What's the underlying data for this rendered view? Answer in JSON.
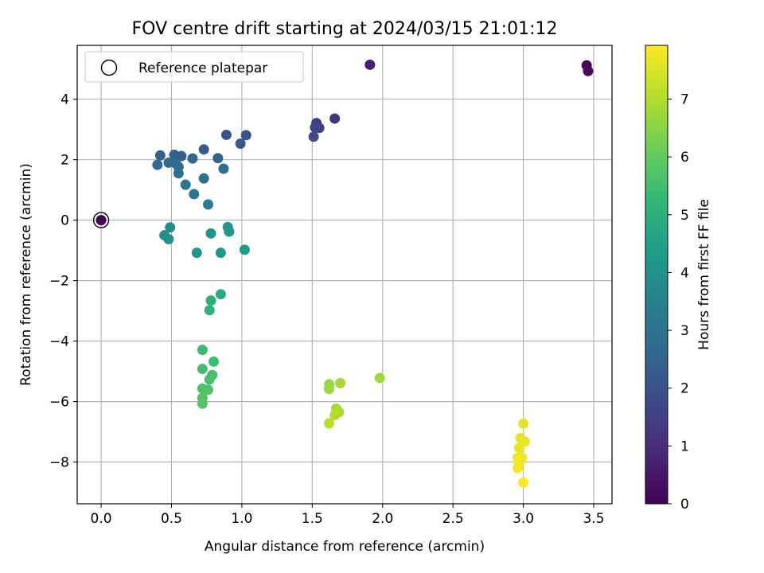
{
  "chart_data": {
    "type": "scatter",
    "title": "FOV centre drift starting at 2024/03/15 21:01:12",
    "xlabel": "Angular distance from reference (arcmin)",
    "ylabel": "Rotation from reference (arcmin)",
    "xlim": [
      -0.17,
      3.63
    ],
    "ylim": [
      -9.38,
      5.78
    ],
    "xticks": [
      0.0,
      0.5,
      1.0,
      1.5,
      2.0,
      2.5,
      3.0,
      3.5
    ],
    "xtick_labels": [
      "0.0",
      "0.5",
      "1.0",
      "1.5",
      "2.0",
      "2.5",
      "3.0",
      "3.5"
    ],
    "yticks": [
      -8,
      -6,
      -4,
      -2,
      0,
      2,
      4
    ],
    "ytick_labels": [
      "−8",
      "−6",
      "−4",
      "−2",
      "0",
      "2",
      "4"
    ],
    "grid": true,
    "legend": {
      "position": "top-left",
      "entries": [
        "Reference platepar"
      ]
    },
    "reference_point": {
      "x": 0.0,
      "y": 0.0
    },
    "colorbar": {
      "label": "Hours from first FF file",
      "colormap": "viridis",
      "range": [
        0,
        7.93
      ],
      "ticks": [
        0,
        1,
        2,
        3,
        4,
        5,
        6,
        7
      ],
      "tick_labels": [
        "0",
        "1",
        "2",
        "3",
        "4",
        "5",
        "6",
        "7"
      ]
    },
    "points": [
      {
        "x": 0.0,
        "y": 0.0,
        "h": 0.0
      },
      {
        "x": 3.45,
        "y": 5.12,
        "h": 0.1
      },
      {
        "x": 3.46,
        "y": 4.93,
        "h": 0.2
      },
      {
        "x": 1.91,
        "y": 5.14,
        "h": 0.7
      },
      {
        "x": 1.66,
        "y": 3.36,
        "h": 1.2
      },
      {
        "x": 1.53,
        "y": 3.21,
        "h": 1.4
      },
      {
        "x": 1.55,
        "y": 3.05,
        "h": 1.5
      },
      {
        "x": 1.52,
        "y": 3.07,
        "h": 1.6
      },
      {
        "x": 1.51,
        "y": 2.76,
        "h": 1.7
      },
      {
        "x": 1.03,
        "y": 2.81,
        "h": 2.0
      },
      {
        "x": 0.89,
        "y": 2.82,
        "h": 2.1
      },
      {
        "x": 0.99,
        "y": 2.53,
        "h": 2.2
      },
      {
        "x": 0.73,
        "y": 2.34,
        "h": 2.3
      },
      {
        "x": 0.42,
        "y": 2.14,
        "h": 2.4
      },
      {
        "x": 0.52,
        "y": 2.16,
        "h": 2.45
      },
      {
        "x": 0.57,
        "y": 2.12,
        "h": 2.5
      },
      {
        "x": 0.83,
        "y": 2.05,
        "h": 2.55
      },
      {
        "x": 0.65,
        "y": 2.04,
        "h": 2.6
      },
      {
        "x": 0.48,
        "y": 1.9,
        "h": 2.65
      },
      {
        "x": 0.4,
        "y": 1.83,
        "h": 2.7
      },
      {
        "x": 0.53,
        "y": 1.87,
        "h": 2.75
      },
      {
        "x": 0.55,
        "y": 1.76,
        "h": 2.8
      },
      {
        "x": 0.87,
        "y": 1.7,
        "h": 2.85
      },
      {
        "x": 0.55,
        "y": 1.55,
        "h": 2.9
      },
      {
        "x": 0.73,
        "y": 1.38,
        "h": 2.95
      },
      {
        "x": 0.6,
        "y": 1.17,
        "h": 3.0
      },
      {
        "x": 0.66,
        "y": 0.86,
        "h": 3.1
      },
      {
        "x": 0.76,
        "y": 0.52,
        "h": 3.3
      },
      {
        "x": 0.49,
        "y": -0.24,
        "h": 3.9
      },
      {
        "x": 0.45,
        "y": -0.5,
        "h": 3.95
      },
      {
        "x": 0.48,
        "y": -0.63,
        "h": 4.0
      },
      {
        "x": 0.9,
        "y": -0.23,
        "h": 4.05
      },
      {
        "x": 0.91,
        "y": -0.38,
        "h": 4.1
      },
      {
        "x": 0.78,
        "y": -0.44,
        "h": 4.15
      },
      {
        "x": 0.68,
        "y": -1.08,
        "h": 4.2
      },
      {
        "x": 0.85,
        "y": -1.08,
        "h": 4.25
      },
      {
        "x": 1.02,
        "y": -0.98,
        "h": 4.3
      },
      {
        "x": 0.85,
        "y": -2.45,
        "h": 4.9
      },
      {
        "x": 0.78,
        "y": -2.66,
        "h": 5.0
      },
      {
        "x": 0.77,
        "y": -2.98,
        "h": 5.1
      },
      {
        "x": 0.72,
        "y": -4.29,
        "h": 5.4
      },
      {
        "x": 0.8,
        "y": -4.68,
        "h": 5.45
      },
      {
        "x": 0.72,
        "y": -4.92,
        "h": 5.5
      },
      {
        "x": 0.79,
        "y": -5.12,
        "h": 5.55
      },
      {
        "x": 0.77,
        "y": -5.27,
        "h": 5.6
      },
      {
        "x": 0.72,
        "y": -5.57,
        "h": 5.65
      },
      {
        "x": 0.76,
        "y": -5.61,
        "h": 5.7
      },
      {
        "x": 0.72,
        "y": -5.88,
        "h": 5.75
      },
      {
        "x": 0.72,
        "y": -6.07,
        "h": 5.8
      },
      {
        "x": 1.98,
        "y": -5.22,
        "h": 6.8
      },
      {
        "x": 1.62,
        "y": -5.43,
        "h": 6.7
      },
      {
        "x": 1.62,
        "y": -5.58,
        "h": 6.75
      },
      {
        "x": 1.7,
        "y": -5.39,
        "h": 6.85
      },
      {
        "x": 1.67,
        "y": -6.23,
        "h": 6.9
      },
      {
        "x": 1.69,
        "y": -6.35,
        "h": 6.95
      },
      {
        "x": 1.66,
        "y": -6.45,
        "h": 7.0
      },
      {
        "x": 1.62,
        "y": -6.72,
        "h": 7.05
      },
      {
        "x": 3.0,
        "y": -6.73,
        "h": 7.6
      },
      {
        "x": 2.98,
        "y": -7.21,
        "h": 7.65
      },
      {
        "x": 3.01,
        "y": -7.32,
        "h": 7.7
      },
      {
        "x": 2.97,
        "y": -7.53,
        "h": 7.72
      },
      {
        "x": 2.96,
        "y": -7.86,
        "h": 7.75
      },
      {
        "x": 2.99,
        "y": -7.85,
        "h": 7.78
      },
      {
        "x": 2.97,
        "y": -8.06,
        "h": 7.82
      },
      {
        "x": 2.96,
        "y": -8.2,
        "h": 7.85
      },
      {
        "x": 3.0,
        "y": -8.68,
        "h": 7.92
      }
    ]
  }
}
